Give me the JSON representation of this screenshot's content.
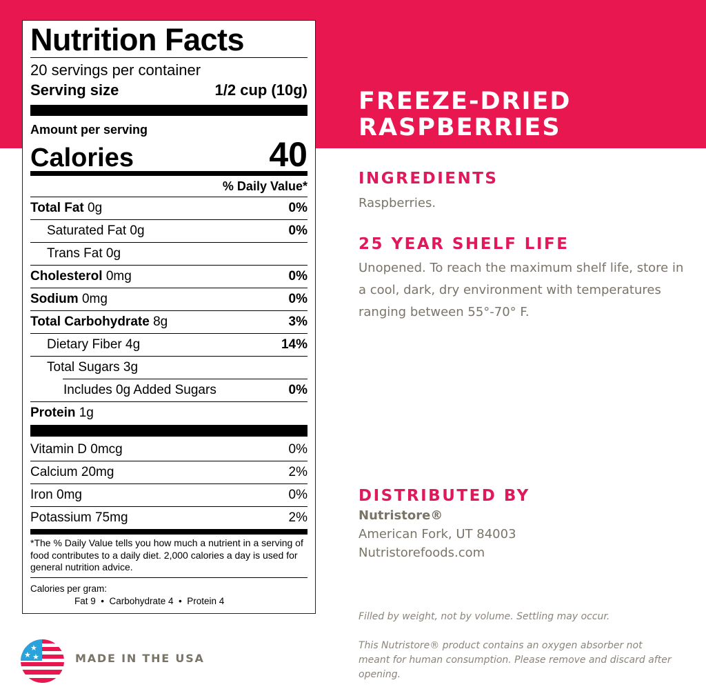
{
  "colors": {
    "brand": "#e8174f",
    "text_gray": "#7a7468"
  },
  "label": {
    "title": "Nutrition Facts",
    "servings": "20 servings per container",
    "serving_size_label": "Serving size",
    "serving_size_value": "1/2 cup (10g)",
    "amount_per_serving": "Amount per serving",
    "calories_label": "Calories",
    "calories_value": "40",
    "dv_header": "% Daily Value*",
    "nutrients": [
      {
        "name": "Total Fat",
        "amount": "0g",
        "dv": "0%"
      },
      {
        "name": "Saturated Fat",
        "amount": "0g",
        "dv": "0%"
      },
      {
        "name": "Trans Fat",
        "amount": "0g",
        "dv": ""
      },
      {
        "name": "Cholesterol",
        "amount": "0mg",
        "dv": "0%"
      },
      {
        "name": "Sodium",
        "amount": "0mg",
        "dv": "0%"
      },
      {
        "name": "Total Carbohydrate",
        "amount": "8g",
        "dv": "3%"
      },
      {
        "name": "Dietary Fiber",
        "amount": "4g",
        "dv": "14%"
      },
      {
        "name": "Total Sugars",
        "amount": "3g",
        "dv": ""
      },
      {
        "name": "Includes 0g Added Sugars",
        "amount": "",
        "dv": "0%"
      },
      {
        "name": "Protein",
        "amount": "1g",
        "dv": ""
      }
    ],
    "vitamins": [
      {
        "name": "Vitamin D 0mcg",
        "dv": "0%"
      },
      {
        "name": "Calcium 20mg",
        "dv": "2%"
      },
      {
        "name": "Iron 0mg",
        "dv": "0%"
      },
      {
        "name": "Potassium 75mg",
        "dv": "2%"
      }
    ],
    "footnote": "*The % Daily Value tells you how much a nutrient in a serving of food contributes to a daily diet. 2,000 calories a day is used for general nutrition advice.",
    "cal_per_gram": "Calories per gram:",
    "cal_per_gram_values": "Fat 9  •  Carbohydrate 4  •  Protein 4"
  },
  "product": {
    "title_line1": "FREEZE-DRIED",
    "title_line2": "RASPBERRIES"
  },
  "ingredients": {
    "heading": "INGREDIENTS",
    "text": "Raspberries."
  },
  "shelf_life": {
    "heading": "25 YEAR SHELF LIFE",
    "text": "Unopened. To reach the maximum shelf life, store in a cool, dark, dry environment with temperatures ranging between 55°-70° F."
  },
  "distributor": {
    "heading": "DISTRIBUTED BY",
    "name": "Nutristore®",
    "address": "American Fork, UT 84003",
    "website": "Nutristorefoods.com"
  },
  "notes": {
    "fill": "Filled by weight, not by volume. Settling may occur.",
    "absorber": "This Nutristore®  product contains an oxygen absorber not meant for human consumption.  Please remove and discard after opening."
  },
  "badge": {
    "icon": "us-flag-icon",
    "text": "MADE IN THE USA"
  }
}
